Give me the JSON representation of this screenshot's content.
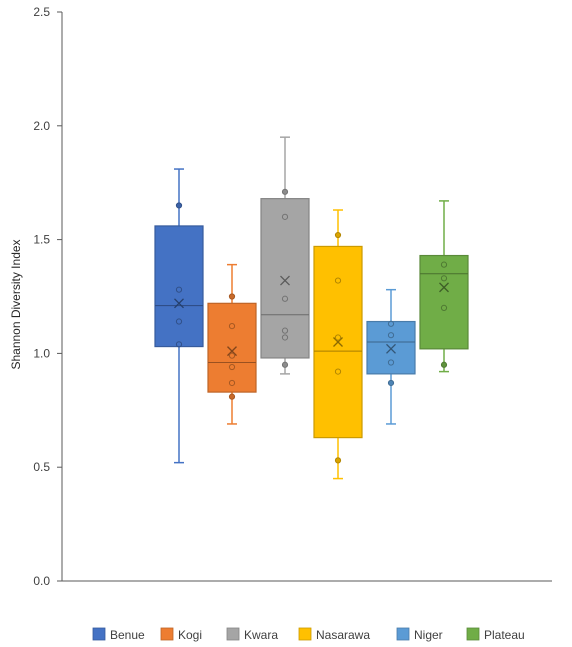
{
  "chart_data": {
    "type": "box",
    "title": "",
    "xlabel": "",
    "ylabel": "Shannon Diversity Index",
    "ylim": [
      0,
      2.5
    ],
    "yticks": [
      "0.0",
      "0.5",
      "1.0",
      "1.5",
      "2.0",
      "2.5"
    ],
    "grid": false,
    "legend_position": "bottom",
    "series": [
      {
        "name": "Benue",
        "color": "#4472C4",
        "min": 0.52,
        "q1": 1.03,
        "median": 1.21,
        "q3": 1.56,
        "max": 1.81,
        "mean": 1.22,
        "points": [
          1.65,
          1.28,
          1.14,
          1.04
        ]
      },
      {
        "name": "Kogi",
        "color": "#ED7D31",
        "min": 0.69,
        "q1": 0.83,
        "median": 0.96,
        "q3": 1.22,
        "max": 1.39,
        "mean": 1.01,
        "points": [
          1.25,
          1.12,
          0.99,
          0.94,
          0.87,
          0.81
        ]
      },
      {
        "name": "Kwara",
        "color": "#A5A5A5",
        "min": 0.91,
        "q1": 0.98,
        "median": 1.17,
        "q3": 1.68,
        "max": 1.95,
        "mean": 1.32,
        "points": [
          1.71,
          1.6,
          1.24,
          1.1,
          1.07,
          0.95
        ]
      },
      {
        "name": "Nasarawa",
        "color": "#FFC000",
        "min": 0.45,
        "q1": 0.63,
        "median": 1.01,
        "q3": 1.47,
        "max": 1.63,
        "mean": 1.05,
        "points": [
          1.52,
          1.32,
          1.07,
          0.92,
          0.53
        ]
      },
      {
        "name": "Niger",
        "color": "#5B9BD5",
        "min": 0.69,
        "q1": 0.91,
        "median": 1.05,
        "q3": 1.14,
        "max": 1.28,
        "mean": 1.02,
        "points": [
          1.13,
          1.08,
          0.96,
          0.87
        ]
      },
      {
        "name": "Plateau",
        "color": "#70AD47",
        "min": 0.92,
        "q1": 1.02,
        "median": 1.35,
        "q3": 1.43,
        "max": 1.67,
        "mean": 1.29,
        "points": [
          1.39,
          1.33,
          1.2,
          0.95
        ]
      }
    ]
  }
}
